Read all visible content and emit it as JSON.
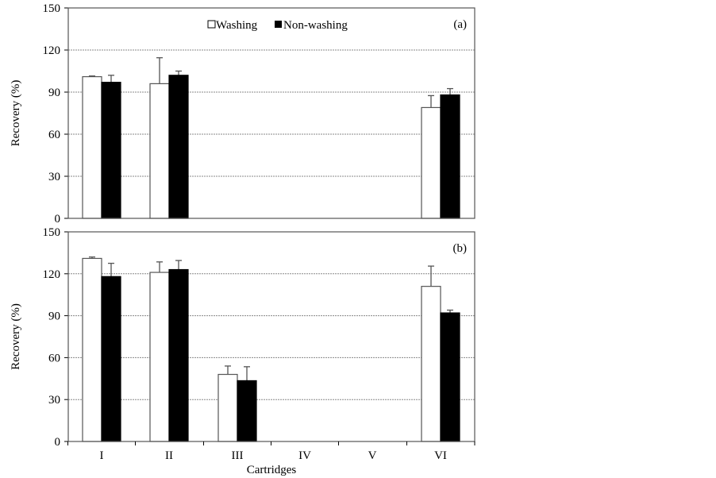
{
  "chart_data": [
    {
      "type": "bar",
      "panel_label": "(a)",
      "ylabel": "Recovery (%)",
      "ylim": [
        0,
        150
      ],
      "yticks": [
        "0",
        "30",
        "60",
        "90",
        "120",
        "150"
      ],
      "categories": [
        "I",
        "II",
        "III",
        "IV",
        "V",
        "VI"
      ],
      "series": [
        {
          "name": "Washing",
          "color": "#ffffff",
          "values": [
            101,
            96,
            null,
            null,
            null,
            79
          ],
          "error_top": [
            101.5,
            114.5,
            null,
            null,
            null,
            87.5
          ]
        },
        {
          "name": "Non-washing",
          "color": "#000000",
          "values": [
            97,
            102,
            null,
            null,
            null,
            88
          ],
          "error_top": [
            102,
            105,
            null,
            null,
            null,
            92.5
          ]
        }
      ],
      "grid": true,
      "legend": "top-center"
    },
    {
      "type": "bar",
      "panel_label": "(b)",
      "ylabel": "Recovery (%)",
      "xlabel": "Cartridges",
      "ylim": [
        0,
        150
      ],
      "yticks": [
        "0",
        "30",
        "60",
        "90",
        "120",
        "150"
      ],
      "categories": [
        "I",
        "II",
        "III",
        "IV",
        "V",
        "VI"
      ],
      "series": [
        {
          "name": "Washing",
          "color": "#ffffff",
          "values": [
            131,
            121,
            48,
            null,
            null,
            111
          ],
          "error_top": [
            132,
            128.5,
            54,
            null,
            null,
            125.5
          ]
        },
        {
          "name": "Non-washing",
          "color": "#000000",
          "values": [
            118,
            123,
            43.5,
            null,
            null,
            92
          ],
          "error_top": [
            127.5,
            129.5,
            53.5,
            null,
            null,
            94
          ]
        }
      ],
      "grid": true
    }
  ]
}
